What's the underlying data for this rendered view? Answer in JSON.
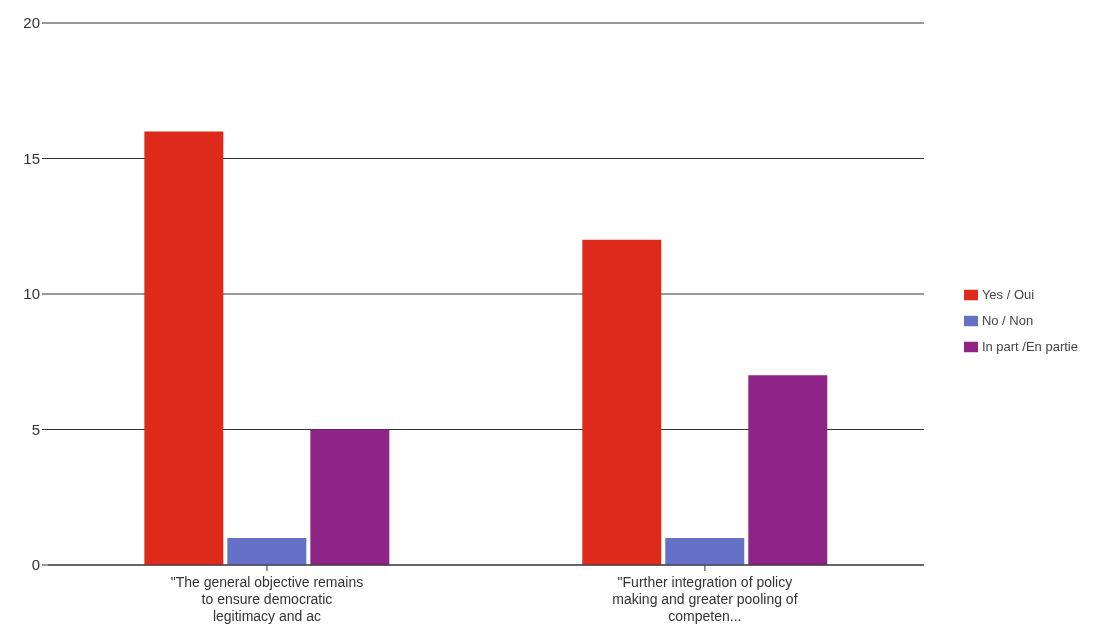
{
  "chart_data": {
    "type": "bar",
    "categories": [
      "\"The general objective remains to ensure democratic legitimacy and ac",
      "\"Further integration of policy making and greater pooling of competen..."
    ],
    "series": [
      {
        "name": "Yes / Oui",
        "color": "#dd2a1b",
        "values": [
          16,
          12
        ]
      },
      {
        "name": "No / Non",
        "color": "#6471c6",
        "values": [
          1,
          1
        ]
      },
      {
        "name": "In part /En partie",
        "color": "#8e2586",
        "values": [
          5,
          7
        ]
      }
    ],
    "ylim": [
      0,
      20
    ],
    "yticks": [
      0,
      5,
      10,
      15,
      20
    ],
    "grid": "y",
    "legend": "right"
  }
}
